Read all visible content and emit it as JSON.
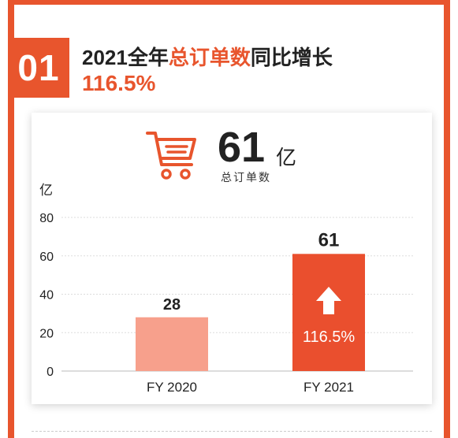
{
  "header": {
    "number": "01",
    "title_prefix": "2021全年",
    "title_accent": "总订单数",
    "title_suffix": "同比增长",
    "growth": "116.5%"
  },
  "summary": {
    "value": "61",
    "unit": "亿",
    "label": "总订单数",
    "icon": "shopping-cart-icon"
  },
  "colors": {
    "accent": "#e8552d",
    "bar_2020": "#f7a08c",
    "bar_2021": "#ea4f2e"
  },
  "chart_data": {
    "type": "bar",
    "y_unit": "亿",
    "ylim": [
      0,
      80
    ],
    "yticks": [
      0,
      20,
      40,
      60,
      80
    ],
    "grid": true,
    "categories": [
      "FY 2020",
      "FY 2021"
    ],
    "values": [
      28,
      61
    ],
    "data_labels": [
      "28",
      "61"
    ],
    "annotation": {
      "category": "FY 2021",
      "text": "116.5%",
      "icon": "arrow-up-icon"
    }
  }
}
